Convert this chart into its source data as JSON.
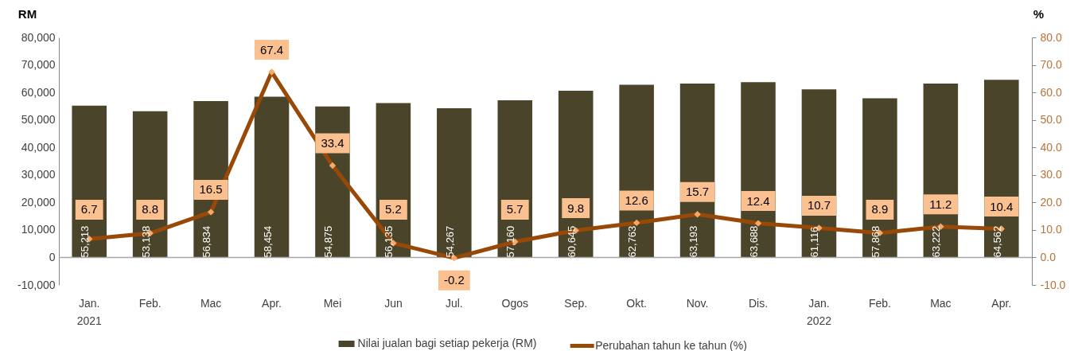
{
  "chart_data": {
    "type": "bar",
    "categories": [
      "Jan.\n2021",
      "Feb.",
      "Mac",
      "Apr.",
      "Mei",
      "Jun",
      "Jul.",
      "Ogos",
      "Sep.",
      "Okt.",
      "Nov.",
      "Dis.",
      "Jan.\n2022",
      "Feb.",
      "Mac",
      "Apr."
    ],
    "series": [
      {
        "name": "Nilai jualan bagi setiap pekerja (RM)",
        "color": "#4a452a",
        "values": [
          55213,
          53138,
          56834,
          58454,
          54875,
          56135,
          54267,
          57160,
          60645,
          62763,
          63193,
          63688,
          61116,
          57868,
          63222,
          64562
        ],
        "value_labels": [
          "55,213",
          "53,138",
          "56,834",
          "58,454",
          "54,875",
          "56,135",
          "54,267",
          "57,160",
          "60,645",
          "62,763",
          "63,193",
          "63,688",
          "61,116",
          "57,868",
          "63,222",
          "64,562"
        ]
      },
      {
        "name": "Perubahan tahun ke tahun (%)",
        "type": "line",
        "axis": "y2",
        "color": "#984807",
        "values": [
          6.7,
          8.8,
          16.5,
          67.4,
          33.4,
          5.2,
          -0.2,
          5.7,
          9.8,
          12.6,
          15.7,
          12.4,
          10.7,
          8.9,
          11.2,
          10.4
        ],
        "value_labels": [
          "6.7",
          "8.8",
          "16.5",
          "67.4",
          "33.4",
          "5.2",
          "-0.2",
          "5.7",
          "9.8",
          "12.6",
          "15.7",
          "12.4",
          "10.7",
          "8.9",
          "11.2",
          "10.4"
        ]
      }
    ],
    "ylabel": "RM",
    "y2label": "%",
    "ylim": [
      -10000,
      80000
    ],
    "yticks": [
      {
        "value": -10000,
        "label": "-10,000"
      },
      0,
      {
        "value": 10000,
        "label": "10,000"
      },
      {
        "value": 20000,
        "label": "20,000"
      },
      {
        "value": 30000,
        "label": "30,000"
      },
      {
        "value": 40000,
        "label": "40,000"
      },
      {
        "value": 50000,
        "label": "50,000"
      },
      {
        "value": 60000,
        "label": "60,000"
      },
      {
        "value": 70000,
        "label": "70,000"
      },
      {
        "value": 80000,
        "label": "80,000"
      }
    ],
    "y2lim": [
      -10,
      80
    ],
    "y2ticks": [
      {
        "value": -10,
        "label": "-10.0"
      },
      {
        "value": 0,
        "label": "0.0"
      },
      {
        "value": 10,
        "label": "10.0"
      },
      {
        "value": 20,
        "label": "20.0"
      },
      {
        "value": 30,
        "label": "30.0"
      },
      {
        "value": 40,
        "label": "40.0"
      },
      {
        "value": 50,
        "label": "50.0"
      },
      {
        "value": 60,
        "label": "60.0"
      },
      {
        "value": 70,
        "label": "70.0"
      },
      {
        "value": 80,
        "label": "80.0"
      }
    ],
    "ref_lines": [
      {
        "axis": "y",
        "value": 0,
        "color": "#a6a6a6"
      }
    ],
    "grid": false,
    "legend": "bottom",
    "marker": "diamond",
    "line_style": "solid"
  }
}
